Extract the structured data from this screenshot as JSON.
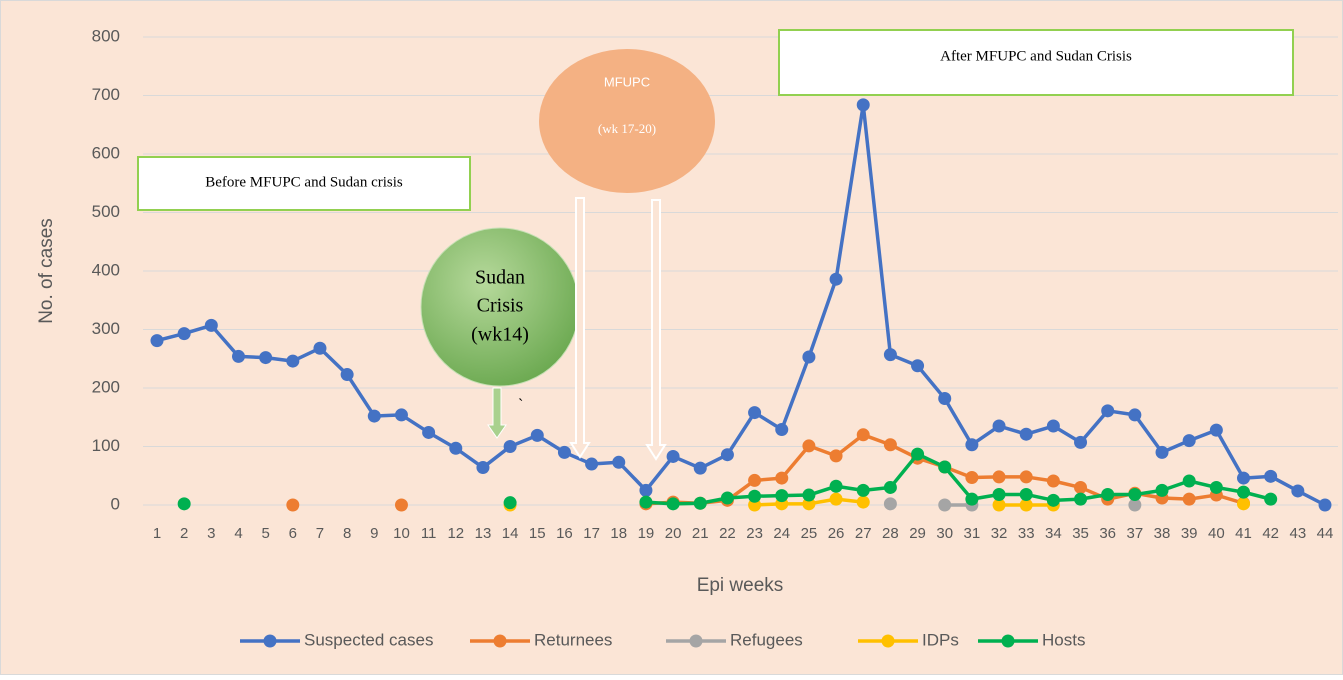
{
  "chart_data": {
    "type": "line",
    "x_label": "Epi weeks",
    "y_label": "No. of cases",
    "categories": [
      "1",
      "2",
      "3",
      "4",
      "5",
      "6",
      "7",
      "8",
      "9",
      "10",
      "11",
      "12",
      "13",
      "14",
      "15",
      "16",
      "17",
      "18",
      "19",
      "20",
      "21",
      "22",
      "23",
      "24",
      "25",
      "26",
      "27",
      "28",
      "29",
      "30",
      "31",
      "32",
      "33",
      "34",
      "35",
      "36",
      "37",
      "38",
      "39",
      "40",
      "41",
      "42",
      "43",
      "44"
    ],
    "ylim": [
      0,
      800
    ],
    "yticks": [
      0,
      100,
      200,
      300,
      400,
      500,
      600,
      700,
      800
    ],
    "grid": true,
    "legend": "bottom",
    "series": [
      {
        "name": "Suspected cases",
        "color": "#4472c4",
        "values": [
          281,
          293,
          307,
          254,
          252,
          246,
          268,
          223,
          152,
          154,
          124,
          97,
          64,
          100,
          119,
          90,
          70,
          73,
          25,
          83,
          63,
          86,
          158,
          129,
          253,
          386,
          684,
          257,
          238,
          182,
          103,
          135,
          121,
          135,
          107,
          161,
          154,
          90,
          110,
          128,
          46,
          49,
          24,
          0
        ]
      },
      {
        "name": "Returnees",
        "color": "#ed7d31",
        "values": [
          null,
          null,
          null,
          null,
          null,
          0,
          null,
          null,
          null,
          0,
          null,
          null,
          null,
          null,
          null,
          null,
          null,
          null,
          2,
          5,
          3,
          8,
          42,
          46,
          101,
          84,
          120,
          103,
          80,
          65,
          47,
          48,
          48,
          41,
          30,
          10,
          20,
          12,
          10,
          17,
          3,
          null,
          null,
          null
        ]
      },
      {
        "name": "Refugees",
        "color": "#a5a5a5",
        "values": [
          null,
          null,
          null,
          null,
          null,
          null,
          null,
          null,
          null,
          null,
          null,
          null,
          null,
          null,
          null,
          null,
          null,
          null,
          null,
          null,
          null,
          null,
          null,
          null,
          null,
          null,
          null,
          2,
          null,
          0,
          0,
          null,
          null,
          null,
          null,
          null,
          0,
          null,
          null,
          null,
          null,
          null,
          null,
          null
        ]
      },
      {
        "name": "IDPs",
        "color": "#ffc000",
        "values": [
          null,
          null,
          null,
          null,
          null,
          null,
          null,
          null,
          null,
          null,
          null,
          null,
          null,
          0,
          null,
          null,
          null,
          null,
          null,
          null,
          null,
          null,
          0,
          2,
          2,
          10,
          5,
          null,
          null,
          null,
          null,
          0,
          0,
          0,
          null,
          null,
          null,
          null,
          null,
          null,
          2,
          null,
          null,
          null
        ]
      },
      {
        "name": "Hosts",
        "color": "#00b050",
        "values": [
          null,
          2,
          null,
          null,
          null,
          null,
          null,
          null,
          null,
          null,
          null,
          null,
          null,
          4,
          null,
          null,
          null,
          null,
          5,
          2,
          3,
          12,
          15,
          16,
          17,
          32,
          25,
          30,
          87,
          65,
          10,
          18,
          18,
          8,
          10,
          18,
          18,
          25,
          41,
          30,
          22,
          10,
          null,
          null
        ]
      }
    ],
    "annotations": [
      "Before MFUPC and Sudan crisis",
      "After MFUPC and Sudan Crisis",
      "MFUPC",
      "(wk 17-20)",
      "Sudan",
      "Crisis",
      "(wk14)",
      "`"
    ]
  }
}
